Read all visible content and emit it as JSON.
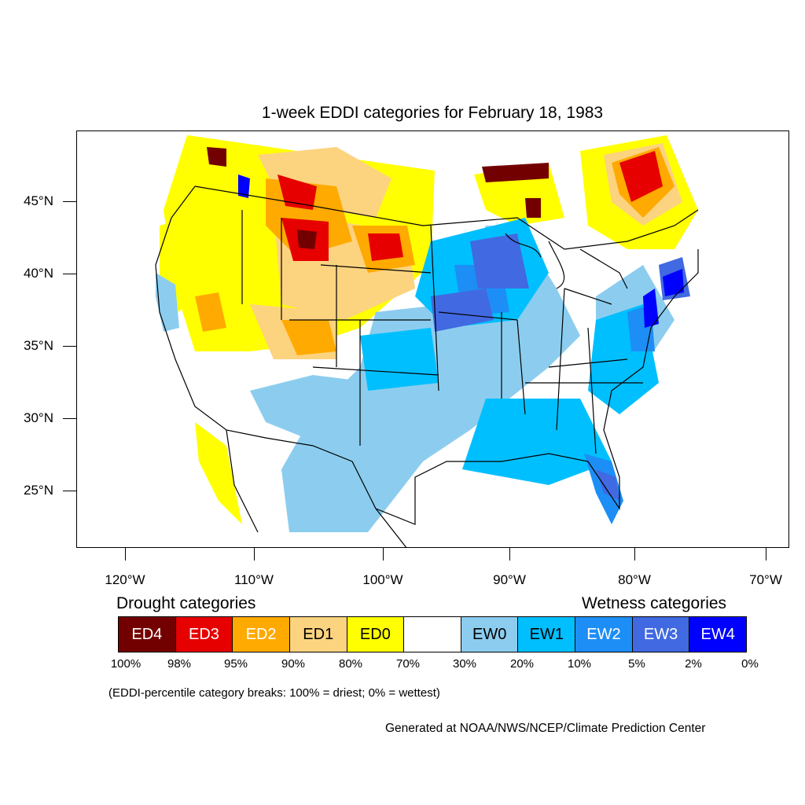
{
  "title": "1-week EDDI categories for February 18, 1983",
  "map": {
    "lat_labels": [
      "45°N",
      "40°N",
      "35°N",
      "30°N",
      "25°N"
    ],
    "lon_labels": [
      "120°W",
      "110°W",
      "100°W",
      "90°W",
      "80°W",
      "70°W"
    ],
    "colors": {
      "ED4": "#730000",
      "ED3": "#e60000",
      "ED2": "#ffaa00",
      "ED1": "#fcd37f",
      "ED0": "#ffff00",
      "neutral": "#ffffff",
      "EW0": "#8ccdef",
      "EW1": "#00bfff",
      "EW2": "#1d8ef6",
      "EW3": "#4169e1",
      "EW4": "#0000ff"
    }
  },
  "legend": {
    "drought_title": "Drought categories",
    "wetness_title": "Wetness categories",
    "categories": [
      {
        "label": "ED4",
        "color": "#730000",
        "text_color": "#ffffff"
      },
      {
        "label": "ED3",
        "color": "#e60000",
        "text_color": "#ffffff"
      },
      {
        "label": "ED2",
        "color": "#ffaa00",
        "text_color": "#ffffff"
      },
      {
        "label": "ED1",
        "color": "#fcd37f",
        "text_color": "#000000"
      },
      {
        "label": "ED0",
        "color": "#ffff00",
        "text_color": "#000000"
      },
      {
        "label": "",
        "color": "#ffffff",
        "text_color": "#000000"
      },
      {
        "label": "EW0",
        "color": "#8ccdef",
        "text_color": "#000000"
      },
      {
        "label": "EW1",
        "color": "#00bfff",
        "text_color": "#000000"
      },
      {
        "label": "EW2",
        "color": "#1d8ef6",
        "text_color": "#ffffff"
      },
      {
        "label": "EW3",
        "color": "#4169e1",
        "text_color": "#ffffff"
      },
      {
        "label": "EW4",
        "color": "#0000ff",
        "text_color": "#ffffff"
      }
    ],
    "percentiles": [
      "100%",
      "98%",
      "95%",
      "90%",
      "80%",
      "70%",
      "30%",
      "20%",
      "10%",
      "5%",
      "2%",
      "0%"
    ],
    "breaks_note": "(EDDI-percentile category breaks: 100% = driest; 0% = wettest)"
  },
  "credit": "Generated at NOAA/NWS/NCEP/Climate Prediction Center"
}
